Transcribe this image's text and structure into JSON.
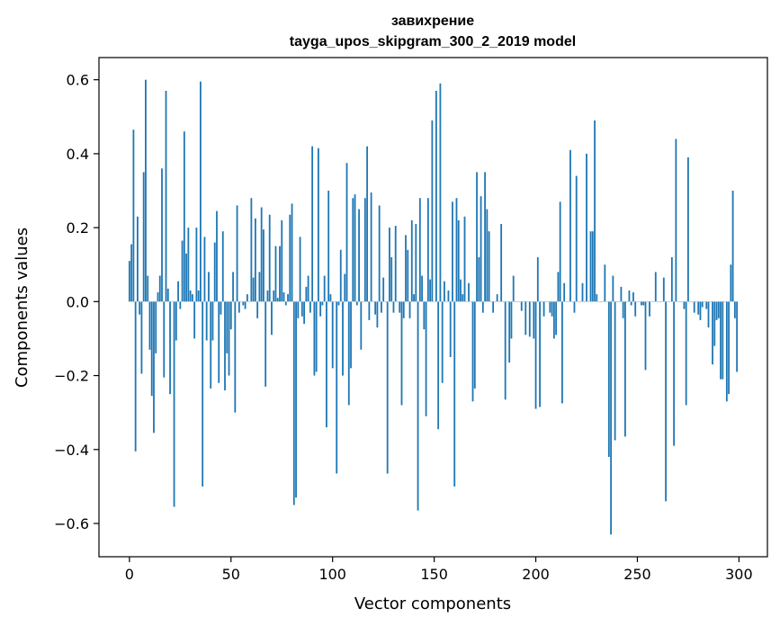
{
  "chart_data": {
    "type": "bar",
    "title": "завихрение",
    "subtitle": "tayga_upos_skipgram_300_2_2019 model",
    "xlabel": "Vector components",
    "ylabel": "Components values",
    "xlim": [
      -15,
      314
    ],
    "ylim": [
      -0.69,
      0.66
    ],
    "xticks": [
      0,
      50,
      100,
      150,
      200,
      250,
      300
    ],
    "xtick_labels": [
      "0",
      "50",
      "100",
      "150",
      "200",
      "250",
      "300"
    ],
    "yticks": [
      -0.6,
      -0.4,
      -0.2,
      0.0,
      0.2,
      0.4,
      0.6
    ],
    "ytick_labels": [
      "−0.6",
      "−0.4",
      "−0.2",
      "0.0",
      "0.2",
      "0.4",
      "0.6"
    ],
    "bar_color": "#1f77b4",
    "x_start": 0,
    "values": [
      0.11,
      0.155,
      0.465,
      -0.405,
      0.23,
      -0.035,
      -0.195,
      0.35,
      0.6,
      0.07,
      -0.13,
      -0.255,
      -0.355,
      -0.14,
      0.025,
      0.07,
      0.36,
      -0.205,
      0.57,
      0.035,
      -0.25,
      0.0,
      -0.555,
      -0.105,
      0.055,
      -0.02,
      0.165,
      0.46,
      0.13,
      0.2,
      0.03,
      0.02,
      -0.1,
      0.2,
      0.03,
      0.595,
      -0.5,
      0.175,
      -0.105,
      0.08,
      -0.235,
      -0.105,
      0.16,
      0.245,
      -0.22,
      -0.035,
      0.19,
      -0.24,
      -0.14,
      -0.2,
      -0.075,
      0.08,
      -0.3,
      0.26,
      -0.03,
      0.0,
      -0.01,
      -0.02,
      0.02,
      0.0,
      0.28,
      0.065,
      0.225,
      -0.045,
      0.08,
      0.255,
      0.195,
      -0.23,
      0.03,
      0.235,
      -0.09,
      0.03,
      0.15,
      0.01,
      0.15,
      0.22,
      0.025,
      -0.01,
      0.02,
      0.235,
      0.265,
      -0.55,
      -0.53,
      -0.045,
      0.175,
      -0.04,
      -0.06,
      0.04,
      0.07,
      -0.03,
      0.42,
      -0.2,
      -0.19,
      0.415,
      -0.04,
      -0.01,
      0.07,
      -0.34,
      0.3,
      0.02,
      -0.18,
      0.0,
      -0.465,
      -0.01,
      0.14,
      -0.2,
      0.075,
      0.375,
      -0.28,
      -0.18,
      0.28,
      0.29,
      -0.01,
      0.25,
      -0.13,
      0.0,
      0.28,
      0.42,
      -0.05,
      0.295,
      0.0,
      -0.035,
      -0.07,
      0.26,
      -0.03,
      0.065,
      0.0,
      -0.465,
      0.2,
      0.12,
      -0.03,
      0.205,
      0.0,
      -0.03,
      -0.28,
      -0.045,
      0.18,
      0.14,
      -0.045,
      0.22,
      0.02,
      0.21,
      -0.565,
      0.28,
      0.07,
      -0.075,
      -0.31,
      0.28,
      0.06,
      0.49,
      0.0,
      0.57,
      -0.345,
      0.59,
      -0.22,
      0.055,
      0.0,
      0.03,
      -0.15,
      0.27,
      -0.5,
      0.28,
      0.22,
      0.06,
      0.02,
      0.23,
      0.0,
      0.05,
      0.0,
      -0.27,
      -0.235,
      0.35,
      0.12,
      0.285,
      -0.03,
      0.35,
      0.25,
      0.19,
      0.0,
      -0.03,
      0.0,
      0.02,
      0.0,
      0.21,
      0.0,
      -0.265,
      0.0,
      -0.165,
      -0.1,
      0.07,
      0.0,
      0.0,
      0.0,
      -0.025,
      0.0,
      -0.09,
      0.0,
      -0.095,
      0.0,
      -0.1,
      -0.29,
      0.12,
      -0.285,
      0.0,
      -0.04,
      0.0,
      0.0,
      -0.03,
      -0.04,
      -0.1,
      -0.09,
      0.08,
      0.27,
      -0.275,
      0.05,
      0.0,
      0.0,
      0.41,
      0.0,
      -0.03,
      0.34,
      0.0,
      0.0,
      0.05,
      0.0,
      0.4,
      0.0,
      0.19,
      0.19,
      0.49,
      0.02,
      0.0,
      0.0,
      0.0,
      0.1,
      0.0,
      -0.42,
      -0.63,
      0.07,
      -0.375,
      0.0,
      0.0,
      0.04,
      -0.045,
      -0.365,
      0.0,
      0.03,
      -0.01,
      0.025,
      -0.04,
      0.0,
      0.0,
      -0.01,
      -0.01,
      -0.185,
      0.0,
      -0.04,
      0.0,
      0.0,
      0.08,
      0.0,
      0.0,
      0.0,
      0.065,
      -0.54,
      0.0,
      0.0,
      0.12,
      -0.39,
      0.44,
      0.0,
      0.0,
      0.0,
      -0.02,
      -0.28,
      0.39,
      0.0,
      0.0,
      -0.03,
      0.0,
      -0.035,
      -0.05,
      -0.015,
      0.0,
      -0.02,
      -0.07,
      0.0,
      -0.17,
      -0.12,
      -0.05,
      -0.045,
      -0.21,
      -0.21,
      0.0,
      -0.27,
      -0.25,
      0.1,
      0.3,
      -0.045,
      -0.19
    ]
  }
}
